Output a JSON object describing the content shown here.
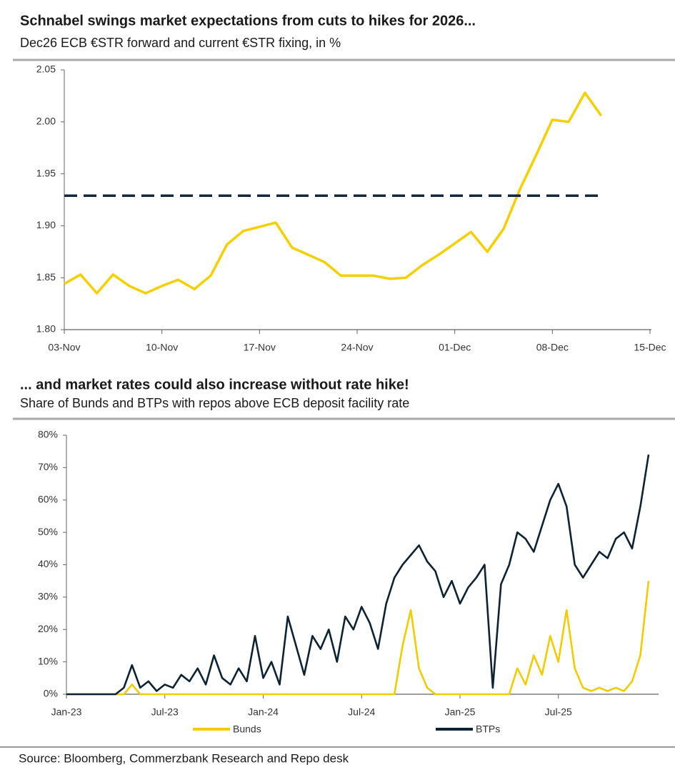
{
  "source": "Source: Bloomberg, Commerzbank Research and Repo desk",
  "chart_data": [
    {
      "type": "line",
      "title": "Schnabel swings market expectations from cuts to hikes for 2026...",
      "subtitle": "Dec26 ECB €STR forward and current €STR fixing, in %",
      "categories": [
        "03-Nov",
        null,
        null,
        null,
        null,
        null,
        "10-Nov",
        null,
        null,
        null,
        null,
        null,
        "17-Nov",
        null,
        null,
        null,
        null,
        null,
        "24-Nov",
        null,
        null,
        null,
        null,
        null,
        "01-Dec",
        null,
        null,
        null,
        null,
        null,
        "08-Dec",
        null,
        null,
        null,
        null,
        null,
        "15-Dec"
      ],
      "series": [
        {
          "color": "#f5d000",
          "style": "solid",
          "values": [
            1.844,
            1.853,
            1.835,
            1.853,
            1.842,
            1.835,
            1.842,
            1.848,
            1.839,
            1.852,
            1.882,
            1.895,
            1.899,
            1.903,
            1.879,
            1.872,
            1.865,
            1.852,
            1.852,
            1.852,
            1.849,
            1.85,
            1.862,
            1.872,
            1.883,
            1.894,
            1.875,
            1.897,
            1.935,
            1.968,
            2.002,
            2.0,
            2.028,
            2.006,
            null,
            null,
            null
          ]
        },
        {
          "color": "#13283a",
          "style": "dashed",
          "values": [
            1.929,
            1.929,
            1.929,
            1.929,
            1.929,
            1.929,
            1.929,
            1.929,
            1.929,
            1.929,
            1.929,
            1.929,
            1.929,
            1.929,
            1.929,
            1.929,
            1.929,
            1.929,
            1.929,
            1.929,
            1.929,
            1.929,
            1.929,
            1.929,
            1.929,
            1.929,
            1.929,
            1.929,
            1.929,
            1.929,
            1.929,
            1.929,
            1.929,
            1.929,
            null,
            null,
            null
          ]
        }
      ],
      "ylim": [
        1.8,
        2.05
      ],
      "yticks": [
        {
          "value": 1.8,
          "label": "1.80"
        },
        1.85,
        {
          "value": 1.9,
          "label": "1.90"
        },
        1.95,
        {
          "value": 2.0,
          "label": "2.00"
        },
        2.05
      ]
    },
    {
      "type": "line",
      "title": "... and market rates could also increase without rate hike!",
      "subtitle": "Share of Bunds and BTPs with repos above ECB deposit facility rate",
      "categories": [
        "Jan-23",
        null,
        null,
        null,
        null,
        null,
        null,
        null,
        null,
        null,
        null,
        null,
        "Jul-23",
        null,
        null,
        null,
        null,
        null,
        null,
        null,
        null,
        null,
        null,
        null,
        "Jan-24",
        null,
        null,
        null,
        null,
        null,
        null,
        null,
        null,
        null,
        null,
        null,
        "Jul-24",
        null,
        null,
        null,
        null,
        null,
        null,
        null,
        null,
        null,
        null,
        null,
        "Jan-25",
        null,
        null,
        null,
        null,
        null,
        null,
        null,
        null,
        null,
        null,
        null,
        "Jul-25",
        null,
        null,
        null,
        null,
        null,
        null,
        null,
        null,
        null,
        null,
        null
      ],
      "series": [
        {
          "name": "Bunds",
          "color": "#f0cc00",
          "values": [
            0,
            0,
            0,
            0,
            0,
            0,
            0,
            0,
            3,
            0,
            0,
            0,
            0,
            0,
            0,
            0,
            0,
            0,
            0,
            0,
            0,
            0,
            0,
            0,
            0,
            0,
            0,
            0,
            0,
            0,
            0,
            0,
            0,
            0,
            0,
            0,
            0,
            0,
            0,
            0,
            0,
            15,
            26,
            8,
            2,
            0,
            0,
            0,
            0,
            0,
            0,
            0,
            0,
            0,
            0,
            8,
            3,
            12,
            6,
            18,
            10,
            26,
            8,
            2,
            1,
            2,
            1,
            2,
            1,
            4,
            12,
            35
          ]
        },
        {
          "name": "BTPs",
          "color": "#0d2233",
          "values": [
            0,
            0,
            0,
            0,
            0,
            0,
            0,
            2,
            9,
            2,
            4,
            1,
            3,
            2,
            6,
            4,
            8,
            3,
            12,
            5,
            3,
            8,
            4,
            18,
            5,
            10,
            3,
            24,
            15,
            6,
            18,
            14,
            20,
            10,
            24,
            20,
            27,
            22,
            14,
            28,
            36,
            40,
            43,
            46,
            41,
            38,
            30,
            35,
            28,
            33,
            36,
            40,
            2,
            34,
            40,
            50,
            48,
            44,
            52,
            60,
            65,
            58,
            40,
            36,
            40,
            44,
            42,
            48,
            50,
            45,
            58,
            74
          ]
        }
      ],
      "ylim": [
        0,
        80
      ],
      "yticks": [
        {
          "value": 0,
          "label": "0%"
        },
        {
          "value": 10,
          "label": "10%"
        },
        {
          "value": 20,
          "label": "20%"
        },
        {
          "value": 30,
          "label": "30%"
        },
        {
          "value": 40,
          "label": "40%"
        },
        {
          "value": 50,
          "label": "50%"
        },
        {
          "value": 60,
          "label": "60%"
        },
        {
          "value": 70,
          "label": "70%"
        },
        {
          "value": 80,
          "label": "80%"
        }
      ]
    }
  ]
}
